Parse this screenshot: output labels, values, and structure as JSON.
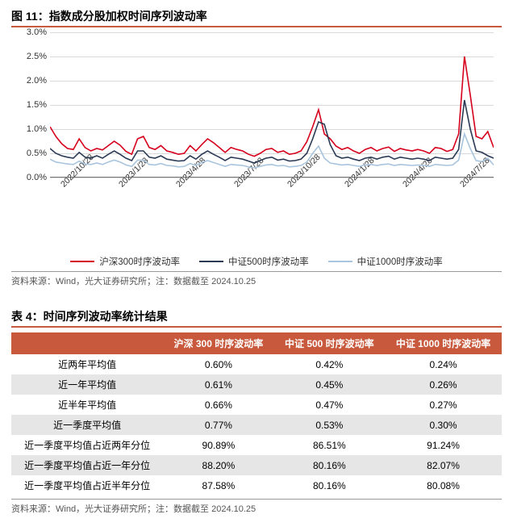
{
  "figure": {
    "title": "图 11：指数成分股加权时间序列波动率",
    "source": "资料来源：Wind，光大证券研究所；注：数据截至 2024.10.25",
    "chart": {
      "type": "line",
      "background_color": "#ffffff",
      "grid_color": "#d9d9d9",
      "ylim": [
        0,
        3
      ],
      "ytick_step": 0.5,
      "y_suffix": "%",
      "y_labels": [
        "0.0%",
        "0.5%",
        "1.0%",
        "1.5%",
        "2.0%",
        "2.5%",
        "3.0%"
      ],
      "x_labels": [
        "2022/10/28",
        "2023/1/28",
        "2023/4/28",
        "2023/7/28",
        "2023/10/28",
        "2024/1/28",
        "2024/4/28",
        "2024/7/28"
      ],
      "x_label_positions_pct": [
        2,
        15,
        28,
        41,
        53,
        66,
        79,
        92
      ],
      "line_width": 1.6,
      "label_fontsize": 11,
      "series": [
        {
          "name": "沪深300时序波动率",
          "color": "#d6001c",
          "values": [
            1.05,
            0.85,
            0.7,
            0.6,
            0.58,
            0.8,
            0.62,
            0.55,
            0.6,
            0.57,
            0.66,
            0.75,
            0.67,
            0.54,
            0.48,
            0.8,
            0.85,
            0.62,
            0.58,
            0.66,
            0.55,
            0.52,
            0.48,
            0.5,
            0.66,
            0.55,
            0.68,
            0.8,
            0.72,
            0.62,
            0.52,
            0.62,
            0.58,
            0.55,
            0.48,
            0.44,
            0.5,
            0.58,
            0.6,
            0.52,
            0.55,
            0.48,
            0.5,
            0.55,
            0.74,
            1.05,
            1.4,
            0.9,
            0.8,
            0.65,
            0.58,
            0.62,
            0.55,
            0.5,
            0.58,
            0.62,
            0.55,
            0.6,
            0.63,
            0.54,
            0.6,
            0.57,
            0.55,
            0.58,
            0.55,
            0.5,
            0.62,
            0.6,
            0.54,
            0.58,
            0.9,
            2.5,
            1.7,
            0.85,
            0.8,
            0.95,
            0.62
          ]
        },
        {
          "name": "中证500时序波动率",
          "color": "#2b3a55",
          "values": [
            0.6,
            0.5,
            0.45,
            0.42,
            0.4,
            0.52,
            0.42,
            0.4,
            0.45,
            0.4,
            0.48,
            0.55,
            0.48,
            0.4,
            0.35,
            0.55,
            0.55,
            0.42,
            0.4,
            0.45,
            0.38,
            0.36,
            0.34,
            0.35,
            0.45,
            0.38,
            0.48,
            0.55,
            0.48,
            0.42,
            0.35,
            0.42,
            0.4,
            0.38,
            0.34,
            0.3,
            0.35,
            0.4,
            0.42,
            0.36,
            0.38,
            0.34,
            0.35,
            0.38,
            0.5,
            0.8,
            1.15,
            1.1,
            0.68,
            0.45,
            0.4,
            0.42,
            0.38,
            0.35,
            0.4,
            0.42,
            0.38,
            0.42,
            0.44,
            0.38,
            0.42,
            0.4,
            0.38,
            0.4,
            0.38,
            0.35,
            0.42,
            0.4,
            0.38,
            0.4,
            0.58,
            1.6,
            1.0,
            0.55,
            0.52,
            0.45,
            0.4
          ]
        },
        {
          "name": "中证1000时序波动率",
          "color": "#a9c5dd",
          "values": [
            0.38,
            0.32,
            0.3,
            0.28,
            0.27,
            0.34,
            0.28,
            0.27,
            0.3,
            0.27,
            0.32,
            0.36,
            0.32,
            0.26,
            0.23,
            0.36,
            0.36,
            0.27,
            0.26,
            0.29,
            0.25,
            0.24,
            0.22,
            0.23,
            0.29,
            0.25,
            0.31,
            0.35,
            0.31,
            0.27,
            0.23,
            0.27,
            0.26,
            0.25,
            0.22,
            0.2,
            0.23,
            0.26,
            0.27,
            0.24,
            0.25,
            0.22,
            0.23,
            0.25,
            0.32,
            0.5,
            0.65,
            0.4,
            0.3,
            0.28,
            0.26,
            0.27,
            0.25,
            0.23,
            0.26,
            0.27,
            0.25,
            0.27,
            0.28,
            0.25,
            0.27,
            0.26,
            0.25,
            0.26,
            0.25,
            0.23,
            0.27,
            0.26,
            0.25,
            0.26,
            0.36,
            0.9,
            0.6,
            0.35,
            0.33,
            0.4,
            0.26
          ]
        }
      ],
      "legend": [
        {
          "label": "沪深300时序波动率",
          "color": "#d6001c"
        },
        {
          "label": "中证500时序波动率",
          "color": "#2b3a55"
        },
        {
          "label": "中证1000时序波动率",
          "color": "#a9c5dd"
        }
      ]
    }
  },
  "table": {
    "title": "表 4：时间序列波动率统计结果",
    "source": "资料来源：Wind，光大证券研究所；注：数据截至 2024.10.25",
    "header_bg": "#c8593c",
    "header_fg": "#ffffff",
    "shaded_bg": "#e6e6e6",
    "columns": [
      "",
      "沪深 300 时序波动率",
      "中证 500 时序波动率",
      "中证 1000 时序波动率"
    ],
    "rows": [
      {
        "shaded": false,
        "cells": [
          "近两年平均值",
          "0.60%",
          "0.42%",
          "0.24%"
        ]
      },
      {
        "shaded": true,
        "cells": [
          "近一年平均值",
          "0.61%",
          "0.45%",
          "0.26%"
        ]
      },
      {
        "shaded": false,
        "cells": [
          "近半年平均值",
          "0.66%",
          "0.47%",
          "0.27%"
        ]
      },
      {
        "shaded": true,
        "cells": [
          "近一季度平均值",
          "0.77%",
          "0.53%",
          "0.30%"
        ]
      },
      {
        "shaded": false,
        "cells": [
          "近一季度平均值占近两年分位",
          "90.89%",
          "86.51%",
          "91.24%"
        ]
      },
      {
        "shaded": true,
        "cells": [
          "近一季度平均值占近一年分位",
          "88.20%",
          "80.16%",
          "82.07%"
        ]
      },
      {
        "shaded": false,
        "cells": [
          "近一季度平均值占近半年分位",
          "87.58%",
          "80.16%",
          "80.08%"
        ]
      }
    ]
  }
}
